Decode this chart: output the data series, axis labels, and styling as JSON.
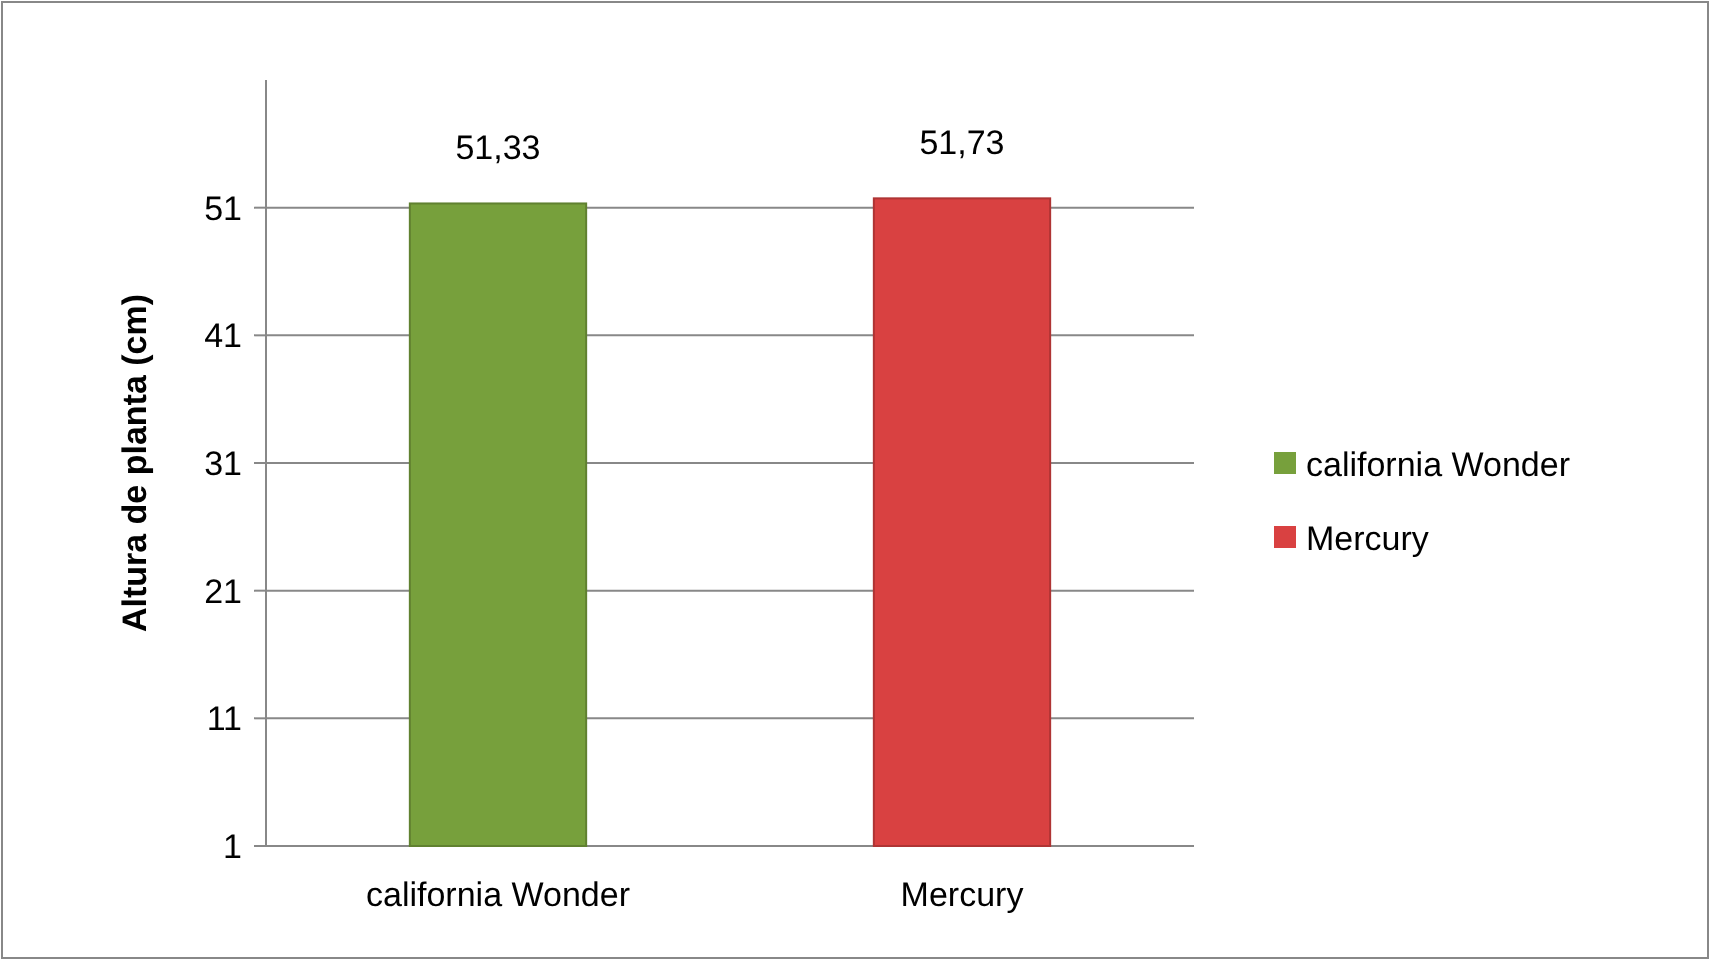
{
  "chart_data": {
    "type": "bar",
    "ylabel": "Altura de planta (cm)",
    "categories": [
      "california Wonder",
      "Mercury"
    ],
    "series": [
      {
        "name": "california Wonder",
        "color": "#77a03c",
        "values": [
          51.33,
          null
        ],
        "value_labels": [
          "51,33",
          null
        ]
      },
      {
        "name": "Mercury",
        "color": "#d94141",
        "values": [
          null,
          51.73
        ],
        "value_labels": [
          null,
          "51,73"
        ]
      }
    ],
    "ylim": [
      1,
      61
    ],
    "yticks": [
      1,
      11,
      21,
      31,
      41,
      51
    ],
    "grid": "y",
    "legend": "right"
  }
}
